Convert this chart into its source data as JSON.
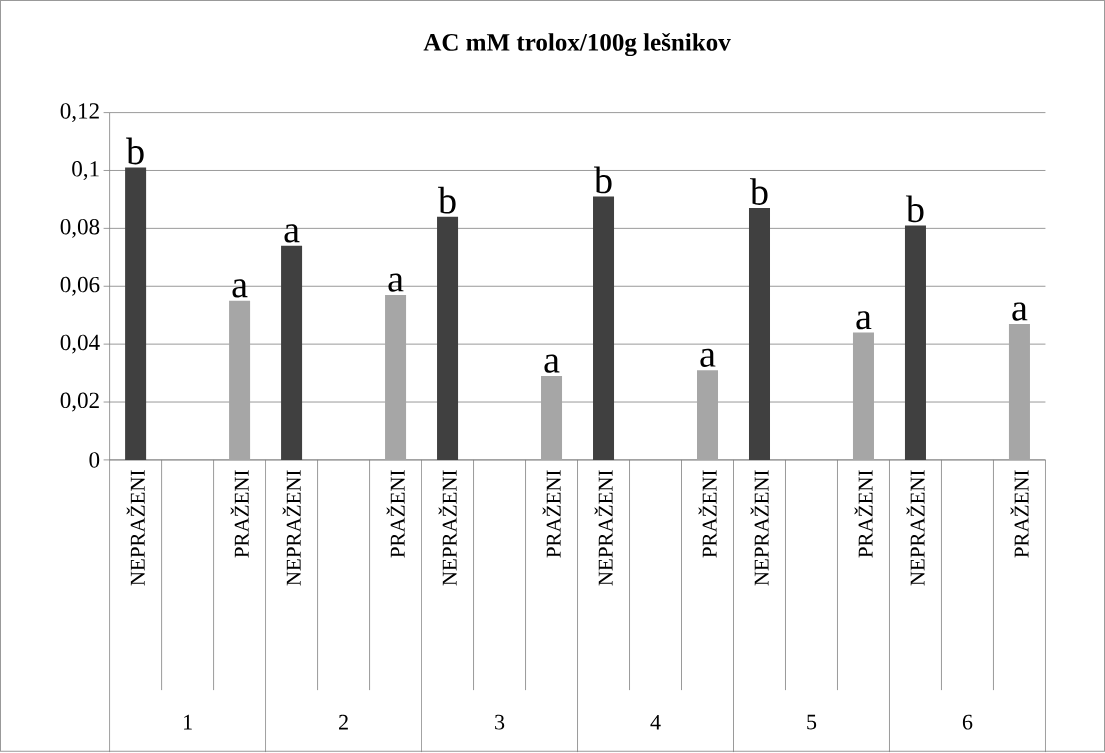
{
  "chart_data": {
    "type": "bar",
    "title": "AC mM trolox/100g  lešnikov",
    "categories": [
      "NEPRAŽENI",
      null,
      "PRAŽENI",
      "NEPRAŽENI",
      null,
      "PRAŽENI",
      "NEPRAŽENI",
      null,
      "PRAŽENI",
      "NEPRAŽENI",
      null,
      "PRAŽENI",
      "NEPRAŽENI",
      null,
      "PRAŽENI",
      "NEPRAŽENI",
      null,
      "PRAŽENI"
    ],
    "values": [
      0.101,
      null,
      0.055,
      0.074,
      null,
      0.057,
      0.084,
      null,
      0.029,
      0.091,
      null,
      0.031,
      0.087,
      null,
      0.044,
      0.081,
      null,
      0.047
    ],
    "colors": [
      "#404040",
      null,
      "#a6a6a6",
      "#404040",
      null,
      "#a6a6a6",
      "#404040",
      null,
      "#a6a6a6",
      "#404040",
      null,
      "#a6a6a6",
      "#404040",
      null,
      "#a6a6a6",
      "#404040",
      null,
      "#a6a6a6"
    ],
    "value_labels": [
      "b",
      null,
      "a",
      "a",
      null,
      "a",
      "b",
      null,
      "a",
      "b",
      null,
      "a",
      "b",
      null,
      "a",
      "b",
      null,
      "a"
    ],
    "annotations": [
      "1",
      "2",
      "3",
      "4",
      "5",
      "6"
    ],
    "ylim": [
      0,
      0.12
    ],
    "yticks": [
      0,
      {
        "value": 0.02,
        "label": "0,02"
      },
      {
        "value": 0.04,
        "label": "0,04"
      },
      {
        "value": 0.06,
        "label": "0,06"
      },
      {
        "value": 0.08,
        "label": "0,08"
      },
      {
        "value": 0.1,
        "label": "0,1"
      },
      {
        "value": 0.12,
        "label": "0,12"
      }
    ],
    "grid": "y"
  }
}
